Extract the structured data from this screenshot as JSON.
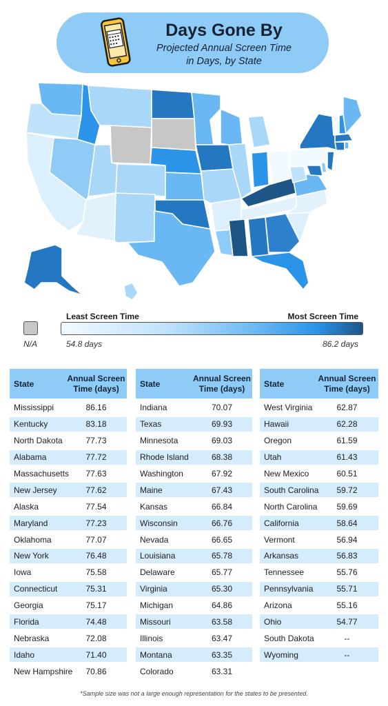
{
  "header": {
    "title": "Days Gone By",
    "subtitle_line1": "Projected Annual Screen Time",
    "subtitle_line2": "in Days, by State"
  },
  "legend": {
    "na_label": "N/A",
    "least_label": "Least Screen Time",
    "most_label": "Most Screen Time",
    "min_label": "54.8 days",
    "max_label": "86.2 days",
    "min": 54.8,
    "max": 86.2,
    "colors": [
      "#f2f9ff",
      "#bfe2fb",
      "#6ab8f3",
      "#2b93e8",
      "#1e5587"
    ],
    "na_color": "#c7c7c7"
  },
  "chart_data": {
    "type": "table",
    "columns": [
      "State",
      "Annual Screen Time (days)"
    ],
    "rows": [
      [
        "Mississippi",
        "86.16"
      ],
      [
        "Kentucky",
        "83.18"
      ],
      [
        "North Dakota",
        "77.73"
      ],
      [
        "Alabama",
        "77.72"
      ],
      [
        "Massachusetts",
        "77.63"
      ],
      [
        "New Jersey",
        "77.62"
      ],
      [
        "Alaska",
        "77.54"
      ],
      [
        "Maryland",
        "77.23"
      ],
      [
        "Oklahoma",
        "77.07"
      ],
      [
        "New York",
        "76.48"
      ],
      [
        "Iowa",
        "75.58"
      ],
      [
        "Connecticut",
        "75.31"
      ],
      [
        "Georgia",
        "75.17"
      ],
      [
        "Florida",
        "74.48"
      ],
      [
        "Nebraska",
        "72.08"
      ],
      [
        "Idaho",
        "71.40"
      ],
      [
        "New Hampshire",
        "70.86"
      ],
      [
        "Indiana",
        "70.07"
      ],
      [
        "Texas",
        "69.93"
      ],
      [
        "Minnesota",
        "69.03"
      ],
      [
        "Rhode Island",
        "68.38"
      ],
      [
        "Washington",
        "67.92"
      ],
      [
        "Maine",
        "67.43"
      ],
      [
        "Kansas",
        "66.84"
      ],
      [
        "Wisconsin",
        "66.76"
      ],
      [
        "Nevada",
        "66.65"
      ],
      [
        "Louisiana",
        "65.78"
      ],
      [
        "Delaware",
        "65.77"
      ],
      [
        "Virginia",
        "65.30"
      ],
      [
        "Michigan",
        "64.86"
      ],
      [
        "Missouri",
        "63.58"
      ],
      [
        "Illinois",
        "63.47"
      ],
      [
        "Montana",
        "63.35"
      ],
      [
        "Colorado",
        "63.31"
      ],
      [
        "West Virginia",
        "62.87"
      ],
      [
        "Hawaii",
        "62.28"
      ],
      [
        "Oregon",
        "61.59"
      ],
      [
        "Utah",
        "61.43"
      ],
      [
        "New Mexico",
        "60.51"
      ],
      [
        "South Carolina",
        "59.72"
      ],
      [
        "North Carolina",
        "59.69"
      ],
      [
        "California",
        "58.64"
      ],
      [
        "Vermont",
        "56.94"
      ],
      [
        "Arkansas",
        "56.83"
      ],
      [
        "Tennessee",
        "55.76"
      ],
      [
        "Pennsylvania",
        "55.71"
      ],
      [
        "Arizona",
        "55.16"
      ],
      [
        "Ohio",
        "54.77"
      ],
      [
        "South Dakota",
        "--"
      ],
      [
        "Wyoming",
        "--"
      ]
    ]
  },
  "table_header": {
    "state": "State",
    "value_line1": "Annual Screen",
    "value_line2": "Time (days)"
  },
  "footnote": "*Sample size was not a large enough representation for the states to be presented."
}
